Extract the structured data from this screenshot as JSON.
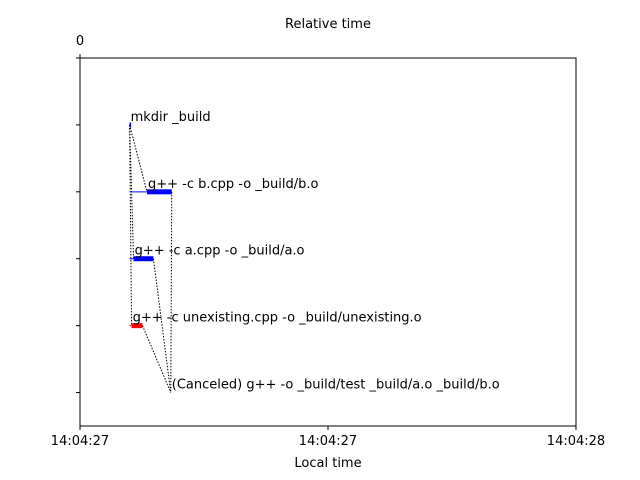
{
  "chart_data": {
    "type": "gantt",
    "title": "Relative time",
    "xlabel": "Local time",
    "top_axis_ticks": [
      {
        "value": 0,
        "label": "0"
      }
    ],
    "bottom_axis_ticks": [
      {
        "value": 0.0,
        "label": "14:04:27"
      },
      {
        "value": 0.5,
        "label": "14:04:27"
      },
      {
        "value": 1.0,
        "label": "14:04:28"
      }
    ],
    "xlim": [
      0.0,
      1.0
    ],
    "ylim": [
      0,
      5.5
    ],
    "colors": {
      "success": "#0000ff",
      "failure": "#ff0000",
      "axis": "#000000"
    },
    "actions": [
      {
        "id": "mkdir",
        "label": "mkdir _build",
        "row": 1,
        "start": 0.1,
        "end": 0.1,
        "status": "success"
      },
      {
        "id": "b",
        "label": "g++ -c b.cpp -o _build/b.o",
        "row": 2,
        "start": 0.135,
        "end": 0.185,
        "status": "success"
      },
      {
        "id": "a",
        "label": "g++ -c a.cpp -o _build/a.o",
        "row": 3,
        "start": 0.108,
        "end": 0.148,
        "status": "success"
      },
      {
        "id": "unexisting",
        "label": "g++ -c unexisting.cpp -o _build/unexisting.o",
        "row": 4,
        "start": 0.104,
        "end": 0.126,
        "status": "failure"
      },
      {
        "id": "link",
        "label": "(Canceled) g++ -o _build/test _build/a.o _build/b.o",
        "row": 5,
        "start": 0.183,
        "end": 0.183,
        "status": "canceled"
      }
    ],
    "waits": [
      {
        "action": "b",
        "from": 0.1,
        "to": 0.135
      },
      {
        "action": "a",
        "from": 0.1,
        "to": 0.108
      },
      {
        "action": "unexisting",
        "from": 0.1,
        "to": 0.104
      }
    ],
    "dependencies": [
      {
        "from": "mkdir",
        "to": "b"
      },
      {
        "from": "mkdir",
        "to": "a"
      },
      {
        "from": "mkdir",
        "to": "unexisting"
      },
      {
        "from": "a",
        "to": "link"
      },
      {
        "from": "b",
        "to": "link"
      },
      {
        "from": "unexisting",
        "to": "link"
      }
    ]
  }
}
